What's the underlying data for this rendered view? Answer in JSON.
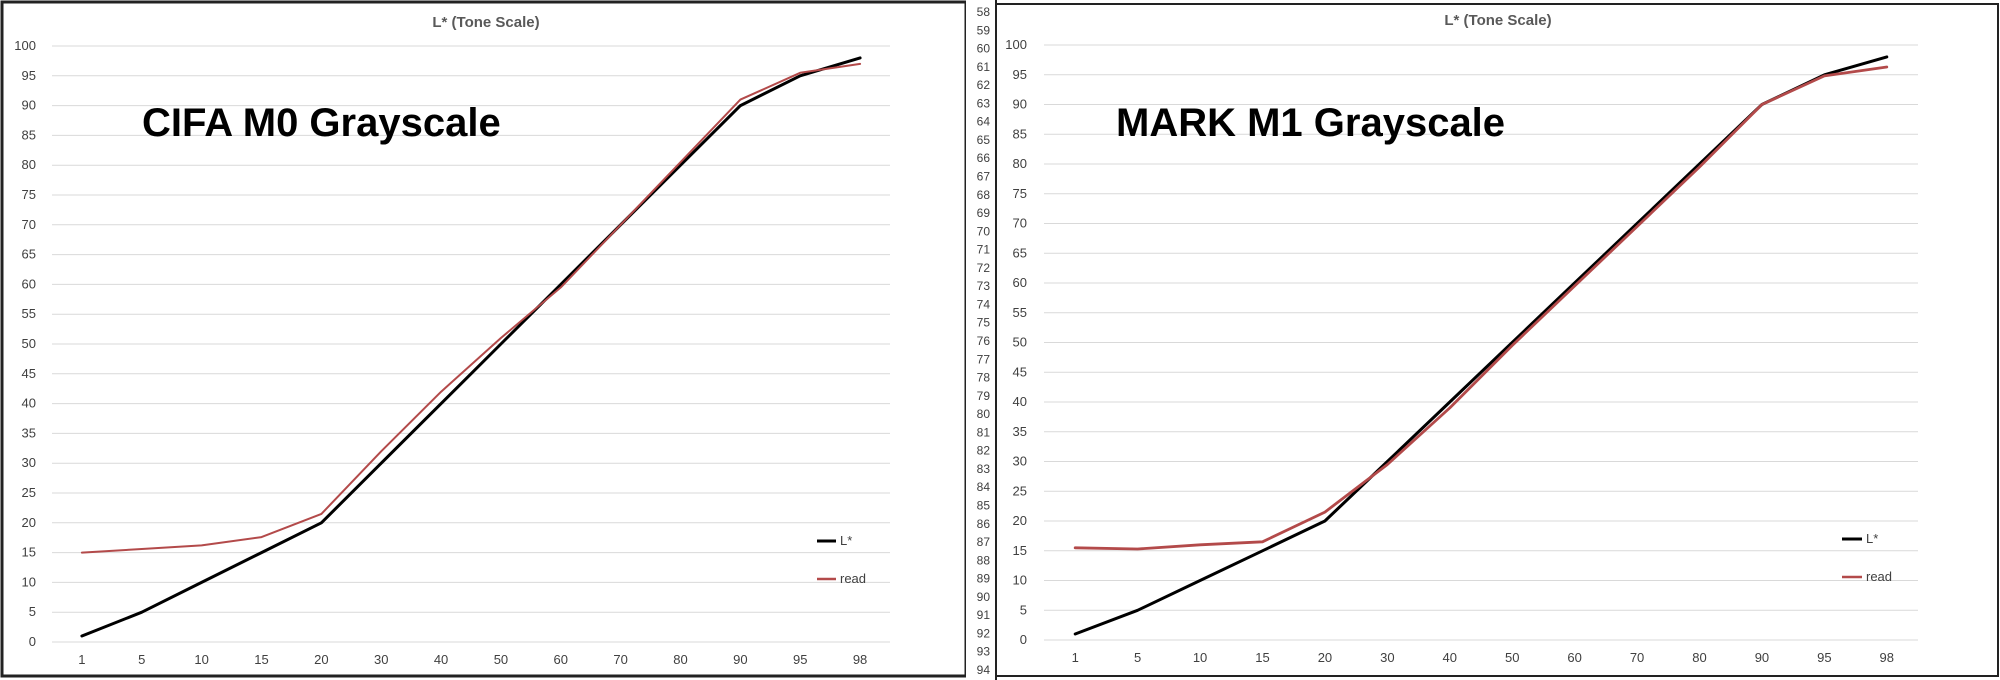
{
  "panels": [
    {
      "overlay_label": "CIFA M0 Grayscale",
      "chart_data": {
        "type": "line",
        "title": "L* (Tone Scale)",
        "categories": [
          "1",
          "5",
          "10",
          "15",
          "20",
          "30",
          "40",
          "50",
          "60",
          "70",
          "80",
          "90",
          "95",
          "98"
        ],
        "series": [
          {
            "name": "L*",
            "color": "#000000",
            "values": [
              1,
              5,
              10,
              15,
              20,
              30,
              40,
              50,
              60,
              70,
              80,
              90,
              95,
              98
            ]
          },
          {
            "name": "read",
            "color": "#b34a4a",
            "values": [
              15,
              15.6,
              16.2,
              17.6,
              21.5,
              32,
              42,
              51,
              59.5,
              70,
              80.5,
              91,
              95.5,
              97
            ]
          }
        ],
        "ylim": [
          0,
          100
        ],
        "yticks": [
          0,
          5,
          10,
          15,
          20,
          25,
          30,
          35,
          40,
          45,
          50,
          55,
          60,
          65,
          70,
          75,
          80,
          85,
          90,
          95,
          100
        ],
        "grid": true,
        "legend_position": "bottom-right"
      }
    },
    {
      "overlay_label": "MARK M1 Grayscale",
      "chart_data": {
        "type": "line",
        "title": "L* (Tone Scale)",
        "categories": [
          "1",
          "5",
          "10",
          "15",
          "20",
          "30",
          "40",
          "50",
          "60",
          "70",
          "80",
          "90",
          "95",
          "98"
        ],
        "series": [
          {
            "name": "L*",
            "color": "#000000",
            "values": [
              1,
              5,
              10,
              15,
              20,
              30,
              40,
              50,
              60,
              70,
              80,
              90,
              95,
              98
            ]
          },
          {
            "name": "read",
            "color": "#b34a4a",
            "values": [
              15.5,
              15.3,
              16,
              16.5,
              21.5,
              29.5,
              39,
              49.5,
              59.5,
              69.5,
              79.5,
              90,
              94.8,
              96.3
            ]
          }
        ],
        "ylim": [
          0,
          100
        ],
        "yticks": [
          0,
          5,
          10,
          15,
          20,
          25,
          30,
          35,
          40,
          45,
          50,
          55,
          60,
          65,
          70,
          75,
          80,
          85,
          90,
          95,
          100
        ],
        "grid": true,
        "legend_position": "bottom-right"
      }
    }
  ],
  "line_number_strip": [
    "58",
    "59",
    "60",
    "61",
    "62",
    "63",
    "64",
    "65",
    "66",
    "67",
    "68",
    "69",
    "70",
    "71",
    "72",
    "73",
    "74",
    "75",
    "76",
    "77",
    "78",
    "79",
    "80",
    "81",
    "82",
    "83",
    "84",
    "85",
    "86",
    "87",
    "88",
    "89",
    "90",
    "91",
    "92",
    "93",
    "94"
  ]
}
